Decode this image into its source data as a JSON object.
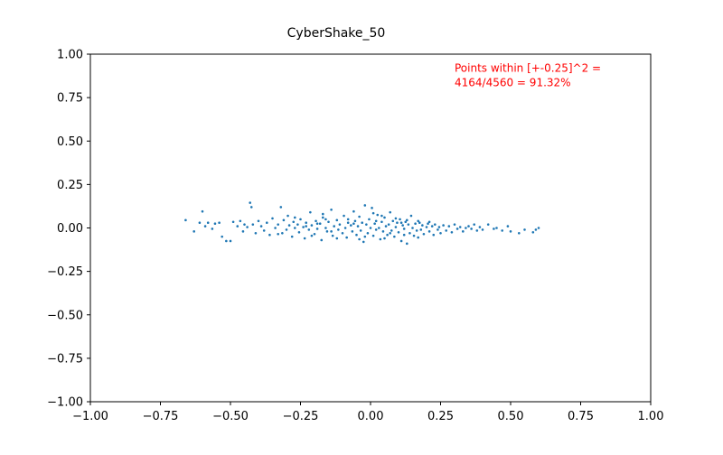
{
  "chart_data": {
    "type": "scatter",
    "title": "CyberShake_50",
    "xlabel": "",
    "ylabel": "",
    "xlim": [
      -1.0,
      1.0
    ],
    "ylim": [
      -1.0,
      1.0
    ],
    "xticks": [
      "−1.00",
      "−0.75",
      "−0.50",
      "−0.25",
      "0.00",
      "0.25",
      "0.50",
      "0.75",
      "1.00"
    ],
    "xtick_values": [
      -1.0,
      -0.75,
      -0.5,
      -0.25,
      0.0,
      0.25,
      0.5,
      0.75,
      1.0
    ],
    "yticks": [
      "1.00",
      "0.75",
      "0.50",
      "0.25",
      "0.00",
      "−0.25",
      "−0.50",
      "−0.75",
      "−1.00"
    ],
    "ytick_values": [
      1.0,
      0.75,
      0.5,
      0.25,
      0.0,
      -0.25,
      -0.5,
      -0.75,
      -1.0
    ],
    "grid": false,
    "legend": "none",
    "marker_color": "#1f77b4",
    "annotation": {
      "lines": [
        "Points within [+-0.25]^2 =",
        "4164/4560 = 91.32%"
      ],
      "color": "#ff0000",
      "x": 0.3,
      "y": 0.92
    },
    "series": [
      {
        "points": [
          [
            -0.66,
            0.045
          ],
          [
            -0.63,
            -0.02
          ],
          [
            -0.61,
            0.03
          ],
          [
            -0.6,
            0.095
          ],
          [
            -0.59,
            0.01
          ],
          [
            -0.58,
            0.03
          ],
          [
            -0.565,
            -0.005
          ],
          [
            -0.555,
            0.025
          ],
          [
            -0.54,
            0.03
          ],
          [
            -0.53,
            -0.05
          ],
          [
            -0.515,
            -0.075
          ],
          [
            -0.5,
            -0.075
          ],
          [
            -0.49,
            0.035
          ],
          [
            -0.475,
            0.01
          ],
          [
            -0.465,
            0.04
          ],
          [
            -0.455,
            -0.02
          ],
          [
            -0.44,
            0.005
          ],
          [
            -0.43,
            0.145
          ],
          [
            -0.425,
            0.12
          ],
          [
            -0.42,
            0.02
          ],
          [
            -0.41,
            -0.03
          ],
          [
            -0.4,
            0.04
          ],
          [
            -0.39,
            0.01
          ],
          [
            -0.38,
            -0.015
          ],
          [
            -0.37,
            0.03
          ],
          [
            -0.36,
            -0.04
          ],
          [
            -0.35,
            0.055
          ],
          [
            -0.34,
            0.0
          ],
          [
            -0.33,
            0.02
          ],
          [
            -0.32,
            0.12
          ],
          [
            -0.315,
            -0.03
          ],
          [
            -0.31,
            0.045
          ],
          [
            -0.3,
            -0.01
          ],
          [
            -0.295,
            0.07
          ],
          [
            -0.29,
            0.015
          ],
          [
            -0.28,
            -0.05
          ],
          [
            -0.275,
            0.035
          ],
          [
            -0.27,
            0.0
          ],
          [
            -0.26,
            0.02
          ],
          [
            -0.255,
            -0.025
          ],
          [
            -0.25,
            0.05
          ],
          [
            -0.24,
            0.005
          ],
          [
            -0.235,
            -0.06
          ],
          [
            -0.23,
            0.03
          ],
          [
            -0.22,
            -0.01
          ],
          [
            -0.215,
            0.09
          ],
          [
            -0.21,
            0.015
          ],
          [
            -0.2,
            -0.035
          ],
          [
            -0.195,
            0.04
          ],
          [
            -0.19,
            -0.005
          ],
          [
            -0.18,
            0.025
          ],
          [
            -0.175,
            -0.07
          ],
          [
            -0.17,
            0.06
          ],
          [
            -0.16,
            0.0
          ],
          [
            -0.155,
            -0.02
          ],
          [
            -0.15,
            0.035
          ],
          [
            -0.14,
            0.105
          ],
          [
            -0.135,
            -0.045
          ],
          [
            -0.13,
            0.01
          ],
          [
            -0.12,
            0.045
          ],
          [
            -0.115,
            -0.01
          ],
          [
            -0.11,
            0.02
          ],
          [
            -0.1,
            -0.03
          ],
          [
            -0.095,
            0.07
          ],
          [
            -0.09,
            0.0
          ],
          [
            -0.085,
            -0.055
          ],
          [
            -0.08,
            0.03
          ],
          [
            -0.07,
            0.015
          ],
          [
            -0.065,
            -0.02
          ],
          [
            -0.06,
            0.095
          ],
          [
            -0.055,
            0.04
          ],
          [
            -0.05,
            -0.04
          ],
          [
            -0.045,
            0.01
          ],
          [
            -0.04,
            0.065
          ],
          [
            -0.035,
            -0.015
          ],
          [
            -0.03,
            0.03
          ],
          [
            -0.025,
            -0.08
          ],
          [
            -0.02,
            0.13
          ],
          [
            -0.015,
            0.02
          ],
          [
            -0.01,
            -0.03
          ],
          [
            -0.005,
            0.05
          ],
          [
            0.0,
            0.0
          ],
          [
            0.005,
            0.115
          ],
          [
            0.01,
            -0.045
          ],
          [
            0.015,
            0.025
          ],
          [
            0.02,
            -0.01
          ],
          [
            0.025,
            0.075
          ],
          [
            0.03,
            0.0
          ],
          [
            0.035,
            -0.065
          ],
          [
            0.04,
            0.035
          ],
          [
            0.045,
            -0.02
          ],
          [
            0.05,
            0.06
          ],
          [
            0.055,
            0.01
          ],
          [
            0.06,
            -0.04
          ],
          [
            0.065,
            0.02
          ],
          [
            0.07,
            0.09
          ],
          [
            0.075,
            -0.015
          ],
          [
            0.08,
            0.04
          ],
          [
            0.085,
            -0.05
          ],
          [
            0.09,
            0.005
          ],
          [
            0.095,
            0.03
          ],
          [
            0.1,
            -0.025
          ],
          [
            0.105,
            0.05
          ],
          [
            0.11,
            -0.075
          ],
          [
            0.115,
            0.015
          ],
          [
            0.12,
            -0.005
          ],
          [
            0.125,
            0.035
          ],
          [
            0.13,
            -0.09
          ],
          [
            0.135,
            0.02
          ],
          [
            0.14,
            -0.03
          ],
          [
            0.145,
            0.07
          ],
          [
            0.15,
            0.0
          ],
          [
            0.155,
            -0.045
          ],
          [
            0.16,
            0.025
          ],
          [
            0.165,
            -0.015
          ],
          [
            0.17,
            -0.055
          ],
          [
            0.175,
            0.03
          ],
          [
            0.18,
            -0.01
          ],
          [
            0.185,
            0.015
          ],
          [
            0.19,
            -0.035
          ],
          [
            0.2,
            0.005
          ],
          [
            0.205,
            0.025
          ],
          [
            0.21,
            -0.02
          ],
          [
            0.22,
            0.01
          ],
          [
            0.225,
            -0.04
          ],
          [
            0.23,
            0.02
          ],
          [
            0.24,
            -0.01
          ],
          [
            0.245,
            0.005
          ],
          [
            0.25,
            -0.03
          ],
          [
            0.26,
            0.015
          ],
          [
            0.27,
            -0.015
          ],
          [
            0.28,
            0.01
          ],
          [
            0.29,
            -0.025
          ],
          [
            0.3,
            0.02
          ],
          [
            0.31,
            -0.005
          ],
          [
            0.32,
            0.005
          ],
          [
            0.33,
            -0.02
          ],
          [
            0.34,
            0.0
          ],
          [
            0.35,
            0.01
          ],
          [
            0.36,
            -0.005
          ],
          [
            0.37,
            0.02
          ],
          [
            0.38,
            -0.015
          ],
          [
            0.39,
            0.005
          ],
          [
            0.4,
            -0.01
          ],
          [
            0.42,
            0.02
          ],
          [
            0.44,
            -0.005
          ],
          [
            0.45,
            0.0
          ],
          [
            0.47,
            -0.015
          ],
          [
            0.49,
            0.01
          ],
          [
            0.5,
            -0.02
          ],
          [
            0.53,
            -0.03
          ],
          [
            0.55,
            -0.01
          ],
          [
            0.58,
            -0.025
          ],
          [
            0.59,
            -0.01
          ],
          [
            0.6,
            0.0
          ],
          [
            -0.45,
            0.02
          ],
          [
            -0.33,
            -0.035
          ],
          [
            -0.27,
            0.06
          ],
          [
            -0.21,
            -0.045
          ],
          [
            -0.17,
            0.08
          ],
          [
            -0.12,
            -0.06
          ],
          [
            -0.08,
            0.05
          ],
          [
            -0.04,
            -0.065
          ],
          [
            0.01,
            0.085
          ],
          [
            0.05,
            -0.06
          ],
          [
            0.09,
            0.055
          ],
          [
            0.13,
            0.045
          ],
          [
            0.17,
            0.04
          ],
          [
            0.21,
            0.035
          ],
          [
            -0.19,
            0.025
          ],
          [
            -0.14,
            -0.02
          ],
          [
            -0.06,
            0.025
          ],
          [
            0.02,
            0.04
          ],
          [
            0.07,
            -0.03
          ],
          [
            0.11,
            0.03
          ],
          [
            -0.23,
            0.01
          ],
          [
            -0.16,
            0.05
          ],
          [
            -0.02,
            -0.05
          ],
          [
            0.04,
            0.07
          ],
          [
            0.12,
            -0.04
          ]
        ]
      }
    ]
  }
}
